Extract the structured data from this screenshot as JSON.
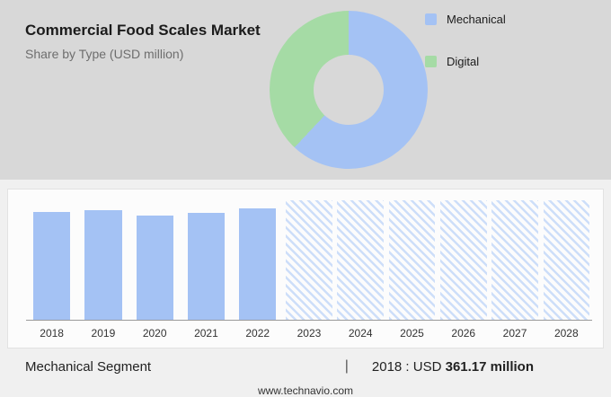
{
  "header": {
    "title": "Commercial Food Scales Market",
    "subtitle": "Share by Type (USD million)"
  },
  "chart_data": [
    {
      "type": "pie",
      "subtype": "donut",
      "labels": [
        "Mechanical",
        "Digital"
      ],
      "values": [
        62,
        38
      ],
      "colors": [
        "#a4c2f4",
        "#a5dba5"
      ],
      "legend_position": "right"
    },
    {
      "type": "bar",
      "categories": [
        "2018",
        "2019",
        "2020",
        "2021",
        "2022",
        "2023",
        "2024",
        "2025",
        "2026",
        "2027",
        "2028"
      ],
      "values": [
        361.17,
        368,
        350,
        359,
        373,
        null,
        null,
        null,
        null,
        null,
        null
      ],
      "forecast_categories": [
        "2023",
        "2024",
        "2025",
        "2026",
        "2027",
        "2028"
      ],
      "ylim": [
        0,
        400
      ],
      "bar_color": "#a4c2f4",
      "hatch_color": "#cddef9",
      "grid": false,
      "xlabel": "",
      "ylabel": ""
    }
  ],
  "footer": {
    "segment": "Mechanical Segment",
    "divider": "|",
    "stat_prefix": "2018 : USD ",
    "stat_value": "361.17 million"
  },
  "site": {
    "url": "www.technavio.com"
  }
}
